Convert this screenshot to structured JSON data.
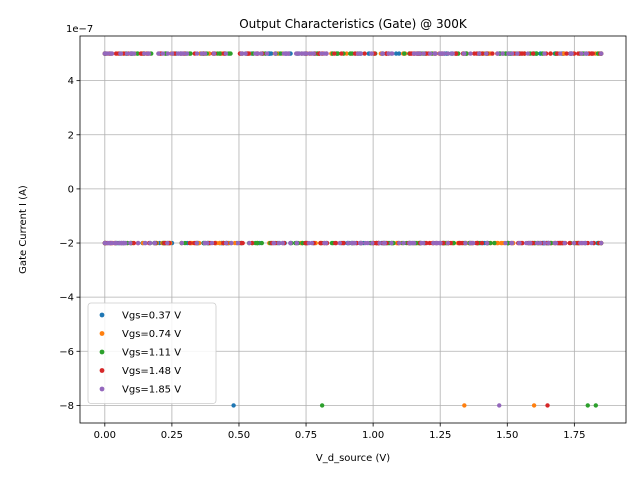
{
  "chart_data": {
    "type": "scatter",
    "title": "Output Characteristics (Gate) @ 300K",
    "xlabel": "V_d_source (V)",
    "ylabel": "Gate Current I (A)",
    "y_offset_label": "1e−7",
    "xlim": [
      -0.0925,
      1.9425
    ],
    "ylim": [
      -8.65e-07,
      5.65e-07
    ],
    "xticks": [
      0.0,
      0.25,
      0.5,
      0.75,
      1.0,
      1.25,
      1.5,
      1.75
    ],
    "xtick_labels": [
      "0.00",
      "0.25",
      "0.50",
      "0.75",
      "1.00",
      "1.25",
      "1.50",
      "1.75"
    ],
    "yticks": [
      -8e-07,
      -6e-07,
      -4e-07,
      -2e-07,
      0,
      2e-07,
      4e-07
    ],
    "ytick_labels": [
      "−8",
      "−6",
      "−4",
      "−2",
      "0",
      "2",
      "4"
    ],
    "grid": true,
    "legend_position": "lower-left",
    "x_range": [
      0.0,
      1.85
    ],
    "levels": {
      "high": 5e-07,
      "mid": -2e-07,
      "low": -8e-07
    },
    "series": [
      {
        "name": "Vgs=0.37 V",
        "color": "#1f77b4",
        "outliers_low_x": [
          0.48
        ]
      },
      {
        "name": "Vgs=0.74 V",
        "color": "#ff7f0e",
        "outliers_low_x": [
          1.34,
          1.6
        ]
      },
      {
        "name": "Vgs=1.11 V",
        "color": "#2ca02c",
        "outliers_low_x": [
          0.81,
          1.8,
          1.83
        ]
      },
      {
        "name": "Vgs=1.48 V",
        "color": "#d62728",
        "outliers_low_x": [
          1.65
        ]
      },
      {
        "name": "Vgs=1.85 V",
        "color": "#9467bd",
        "outliers_low_x": [
          1.47
        ]
      }
    ]
  }
}
